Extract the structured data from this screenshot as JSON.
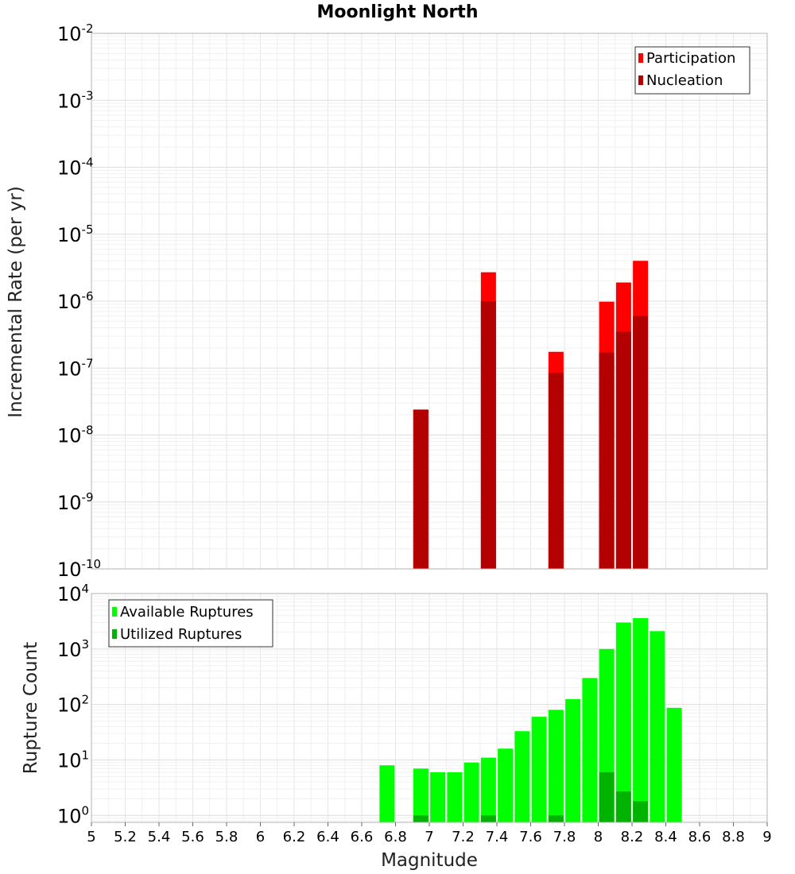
{
  "chart_data": [
    {
      "type": "bar",
      "title": "Moonlight North",
      "ylabel": "Incremental Rate (per yr)",
      "xlabel": "",
      "yscale": "log",
      "ylim": [
        1e-10,
        0.01
      ],
      "xlim": [
        5,
        9
      ],
      "y_tick_exponents": [
        "-10",
        "-9",
        "-8",
        "-7",
        "-6",
        "-5",
        "-4",
        "-3",
        "-2"
      ],
      "grid": true,
      "legend_position": "top-right",
      "series": [
        {
          "name": "Participation",
          "color": "#ff0000",
          "points": [
            {
              "x": 6.95,
              "y": 2.4e-08
            },
            {
              "x": 7.35,
              "y": 2.7e-06
            },
            {
              "x": 7.75,
              "y": 1.75e-07
            },
            {
              "x": 8.05,
              "y": 9.8e-07
            },
            {
              "x": 8.15,
              "y": 1.9e-06
            },
            {
              "x": 8.25,
              "y": 4e-06
            }
          ]
        },
        {
          "name": "Nucleation",
          "color": "#b30000",
          "points": [
            {
              "x": 6.95,
              "y": 2.4e-08
            },
            {
              "x": 7.35,
              "y": 1e-06
            },
            {
              "x": 7.75,
              "y": 8.5e-08
            },
            {
              "x": 8.05,
              "y": 1.7e-07
            },
            {
              "x": 8.15,
              "y": 3.5e-07
            },
            {
              "x": 8.25,
              "y": 6e-07
            }
          ]
        }
      ]
    },
    {
      "type": "bar",
      "title": "",
      "ylabel": "Rupture Count",
      "xlabel": "Magnitude",
      "yscale": "log",
      "ylim": [
        0.75,
        10000
      ],
      "xlim": [
        5,
        9
      ],
      "y_tick_exponents": [
        "0",
        "1",
        "2",
        "3",
        "4"
      ],
      "x_ticks": [
        "5",
        "5.2",
        "5.4",
        "5.6",
        "5.8",
        "6",
        "6.2",
        "6.4",
        "6.6",
        "6.8",
        "7",
        "7.2",
        "7.4",
        "7.6",
        "7.8",
        "8",
        "8.2",
        "8.4",
        "8.6",
        "8.8",
        "9"
      ],
      "grid": true,
      "legend_position": "top-left",
      "series": [
        {
          "name": "Available Ruptures",
          "color": "#00ff00",
          "points": [
            {
              "x": 6.75,
              "y": 8
            },
            {
              "x": 6.95,
              "y": 7
            },
            {
              "x": 7.05,
              "y": 6
            },
            {
              "x": 7.15,
              "y": 6
            },
            {
              "x": 7.25,
              "y": 9
            },
            {
              "x": 7.35,
              "y": 11
            },
            {
              "x": 7.45,
              "y": 16
            },
            {
              "x": 7.55,
              "y": 33
            },
            {
              "x": 7.65,
              "y": 60
            },
            {
              "x": 7.75,
              "y": 80
            },
            {
              "x": 7.85,
              "y": 125
            },
            {
              "x": 7.95,
              "y": 300
            },
            {
              "x": 8.05,
              "y": 1000
            },
            {
              "x": 8.15,
              "y": 3000
            },
            {
              "x": 8.25,
              "y": 3600
            },
            {
              "x": 8.35,
              "y": 2100
            },
            {
              "x": 8.45,
              "y": 87
            }
          ]
        },
        {
          "name": "Utilized Ruptures",
          "color": "#00b300",
          "points": [
            {
              "x": 6.95,
              "y": 1
            },
            {
              "x": 7.35,
              "y": 1
            },
            {
              "x": 7.75,
              "y": 1
            },
            {
              "x": 8.05,
              "y": 6
            },
            {
              "x": 8.15,
              "y": 2.7
            },
            {
              "x": 8.25,
              "y": 1.8
            }
          ]
        }
      ]
    }
  ]
}
